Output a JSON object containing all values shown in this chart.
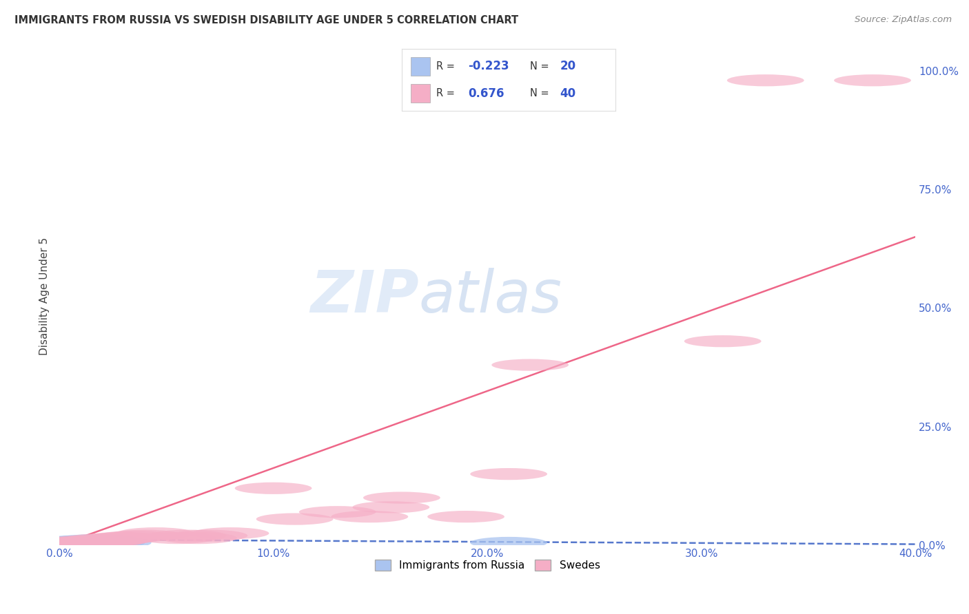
{
  "title": "IMMIGRANTS FROM RUSSIA VS SWEDISH DISABILITY AGE UNDER 5 CORRELATION CHART",
  "source": "Source: ZipAtlas.com",
  "ylabel": "Disability Age Under 5",
  "xlim": [
    0.0,
    0.4
  ],
  "ylim": [
    0.0,
    1.05
  ],
  "xtick_labels": [
    "0.0%",
    "10.0%",
    "20.0%",
    "30.0%",
    "40.0%"
  ],
  "xtick_vals": [
    0.0,
    0.1,
    0.2,
    0.3,
    0.4
  ],
  "ytick_labels_right": [
    "100.0%",
    "75.0%",
    "50.0%",
    "25.0%",
    "0.0%"
  ],
  "ytick_vals": [
    1.0,
    0.75,
    0.5,
    0.25,
    0.0
  ],
  "grid_color": "#cccccc",
  "background_color": "#ffffff",
  "legend_R1": "-0.223",
  "legend_N1": "20",
  "legend_R2": "0.676",
  "legend_N2": "40",
  "series1_color": "#aac4f0",
  "series2_color": "#f5aec6",
  "trendline1_color": "#5577cc",
  "trendline2_color": "#ee6688",
  "blue_scatter_x": [
    0.002,
    0.003,
    0.004,
    0.005,
    0.006,
    0.007,
    0.008,
    0.009,
    0.01,
    0.011,
    0.012,
    0.013,
    0.014,
    0.015,
    0.016,
    0.018,
    0.02,
    0.022,
    0.025,
    0.21
  ],
  "blue_scatter_y": [
    0.005,
    0.005,
    0.005,
    0.005,
    0.005,
    0.008,
    0.005,
    0.005,
    0.008,
    0.005,
    0.005,
    0.008,
    0.01,
    0.005,
    0.008,
    0.005,
    0.01,
    0.005,
    0.005,
    0.005
  ],
  "pink_scatter_x": [
    0.003,
    0.005,
    0.007,
    0.008,
    0.01,
    0.011,
    0.012,
    0.013,
    0.014,
    0.015,
    0.016,
    0.017,
    0.018,
    0.019,
    0.02,
    0.022,
    0.024,
    0.026,
    0.028,
    0.03,
    0.035,
    0.04,
    0.045,
    0.055,
    0.06,
    0.065,
    0.07,
    0.08,
    0.1,
    0.11,
    0.13,
    0.145,
    0.155,
    0.16,
    0.19,
    0.21,
    0.22,
    0.31,
    0.33,
    0.38
  ],
  "pink_scatter_y": [
    0.005,
    0.005,
    0.005,
    0.005,
    0.005,
    0.008,
    0.005,
    0.008,
    0.005,
    0.008,
    0.005,
    0.005,
    0.005,
    0.008,
    0.012,
    0.008,
    0.01,
    0.012,
    0.015,
    0.015,
    0.018,
    0.02,
    0.025,
    0.015,
    0.02,
    0.015,
    0.02,
    0.025,
    0.12,
    0.055,
    0.07,
    0.06,
    0.08,
    0.1,
    0.06,
    0.15,
    0.38,
    0.43,
    0.98,
    0.98
  ],
  "trendline1_x": [
    0.0,
    0.4
  ],
  "trendline1_y": [
    0.012,
    0.002
  ],
  "trendline2_x": [
    0.0,
    0.4
  ],
  "trendline2_y": [
    0.0,
    0.65
  ],
  "watermark_color": "#c8d8f0"
}
